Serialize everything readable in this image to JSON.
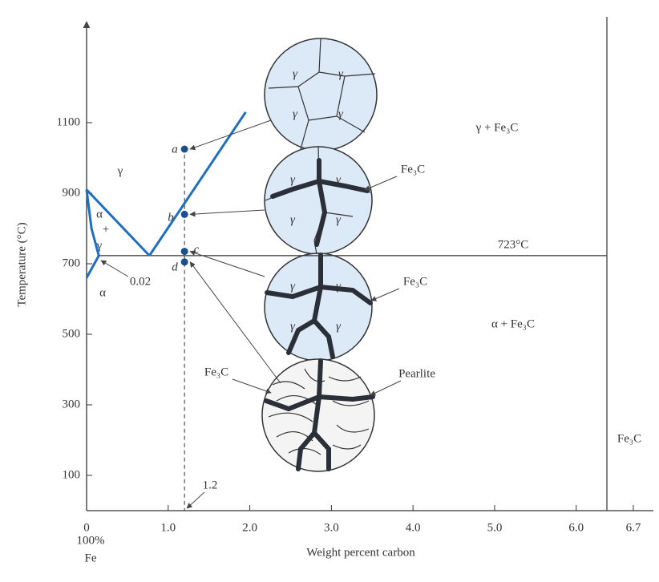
{
  "chart_data": {
    "type": "line",
    "xlabel": "Weight percent carbon",
    "ylabel": "Temperature (°C)",
    "xlim": [
      0,
      6.7
    ],
    "ylim": [
      0,
      1400
    ],
    "xticks": [
      0,
      {
        "value": 1,
        "label": "1.0"
      },
      {
        "value": 2,
        "label": "2.0"
      },
      {
        "value": 3,
        "label": "3.0"
      },
      {
        "value": 4,
        "label": "4.0"
      },
      {
        "value": 5,
        "label": "5.0"
      },
      {
        "value": 6,
        "label": "6.0"
      },
      6.7
    ],
    "yticks": [
      100,
      300,
      500,
      700,
      900,
      1100
    ],
    "series": [
      {
        "color": "#1f6fc0",
        "x": [
          0.77,
          1.95
        ],
        "values": [
          723,
          1130
        ]
      },
      {
        "color": "#1f6fc0",
        "x": [
          0,
          0.77
        ],
        "values": [
          910,
          723
        ]
      },
      {
        "color": "#1f6fc0",
        "x": [
          0,
          0.06,
          0.15
        ],
        "values": [
          910,
          800,
          723
        ]
      },
      {
        "color": "#1f6fc0",
        "x": [
          0.15,
          0
        ],
        "values": [
          723,
          660
        ]
      }
    ],
    "eutectoid": {
      "value": 723,
      "label": "723°C"
    },
    "composition": 1.2,
    "points": [
      {
        "label": "a",
        "x": 1.2,
        "y": 1025
      },
      {
        "label": "b",
        "x": 1.2,
        "y": 840
      },
      {
        "label": "c",
        "x": 1.2,
        "y": 735
      },
      {
        "label": "d",
        "x": 1.2,
        "y": 705
      }
    ],
    "point_color": "#1a4f8c",
    "regions": [
      "γ",
      "α",
      "+",
      "γ",
      "α",
      "0.02",
      "γ + Fe₃C",
      "α + Fe₃C",
      "Fe₃C",
      "100%",
      "Fe"
    ],
    "microstructures": [
      {
        "labels": [
          "γ",
          "γ",
          "γ",
          "γ"
        ],
        "callouts": []
      },
      {
        "labels": [
          "γ",
          "γ",
          "γ",
          "γ"
        ],
        "callouts": [
          "Fe₃C"
        ]
      },
      {
        "labels": [
          "γ",
          "γ",
          "γ",
          "γ"
        ],
        "callouts": [
          "Fe₃C"
        ]
      },
      {
        "labels": [],
        "callouts": [
          "Fe₃C",
          "Pearlite"
        ]
      }
    ]
  }
}
